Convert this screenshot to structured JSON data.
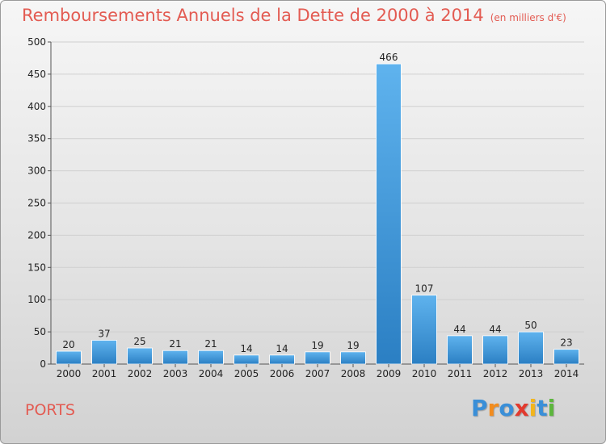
{
  "chart_data": {
    "type": "bar",
    "title": "Remboursements Annuels de la Dette de 2000 à 2014",
    "unit_label": "(en milliers d'€)",
    "categories": [
      "2000",
      "2001",
      "2002",
      "2003",
      "2004",
      "2005",
      "2006",
      "2007",
      "2008",
      "2009",
      "2010",
      "2011",
      "2012",
      "2013",
      "2014"
    ],
    "values": [
      20,
      37,
      25,
      21,
      21,
      14,
      14,
      19,
      19,
      466,
      107,
      44,
      44,
      50,
      23
    ],
    "xlabel": "",
    "ylabel": "",
    "ylim": [
      0,
      500
    ],
    "yticks": [
      0,
      50,
      100,
      150,
      200,
      250,
      300,
      350,
      400,
      450,
      500
    ],
    "grid": true,
    "bar_color": "#3f97dc"
  },
  "commune": "PORTS",
  "logo": {
    "letters": [
      "P",
      "r",
      "o",
      "x",
      "i",
      "t",
      "i"
    ],
    "colors": [
      "#3a8fd8",
      "#f28c1e",
      "#3a8fd8",
      "#e23a2e",
      "#f2b51e",
      "#3a8fd8",
      "#5cb63c"
    ]
  }
}
